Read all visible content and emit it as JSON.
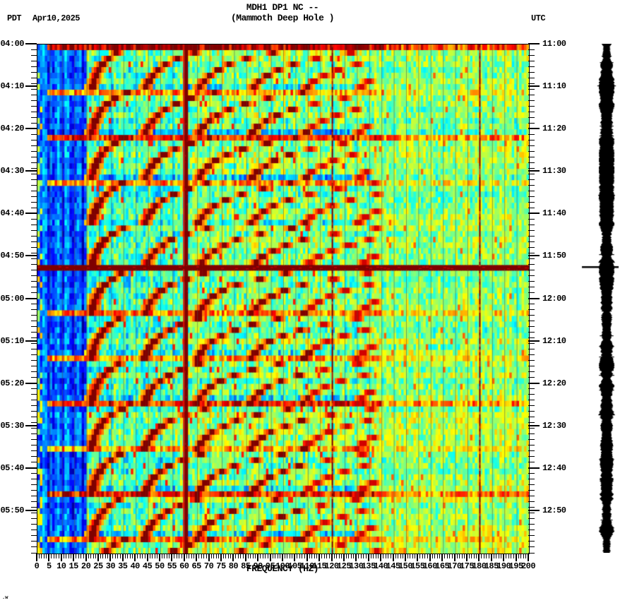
{
  "header": {
    "tz_left": "PDT",
    "date": "Apr10,2025",
    "title": "MDH1 DP1 NC --",
    "subtitle": "(Mammoth Deep Hole )",
    "tz_right": "UTC"
  },
  "footer_note": ".w",
  "chart_data": {
    "type": "heatmap",
    "subtype": "seismic-spectrogram",
    "title": "MDH1 DP1 NC --",
    "subtitle": "(Mammoth Deep Hole )",
    "xlabel": "FREQUENCY (HZ)",
    "x_range_hz": [
      0,
      200
    ],
    "x_major_tick_step_hz": 5,
    "x_minor_tick_step_hz": 1,
    "x_tick_labels": [
      "0",
      "5",
      "10",
      "15",
      "20",
      "25",
      "30",
      "35",
      "40",
      "45",
      "50",
      "55",
      "60",
      "65",
      "70",
      "75",
      "80",
      "85",
      "90",
      "95",
      "100",
      "105",
      "110",
      "115",
      "120",
      "125",
      "130",
      "135",
      "140",
      "145",
      "150",
      "155",
      "160",
      "165",
      "170",
      "175",
      "180",
      "185",
      "190",
      "195",
      "200"
    ],
    "left_axis": {
      "timezone": "PDT",
      "start": "04:00",
      "end": "06:00",
      "label_step_min": 10,
      "labels": [
        "04:00",
        "04:10",
        "04:20",
        "04:30",
        "04:40",
        "04:50",
        "05:00",
        "05:10",
        "05:20",
        "05:30",
        "05:40",
        "05:50"
      ]
    },
    "right_axis": {
      "timezone": "UTC",
      "start": "11:00",
      "end": "13:00",
      "label_step_min": 10,
      "labels": [
        "11:00",
        "11:10",
        "11:20",
        "11:30",
        "11:40",
        "11:50",
        "12:00",
        "12:10",
        "12:20",
        "12:30",
        "12:40",
        "12:50"
      ]
    },
    "time_rows": 90,
    "row_duration_sec": 80,
    "palette": "jet",
    "features": {
      "powerline_hz": [
        60,
        120,
        180
      ],
      "powerline_main_color": "#7f0000",
      "powerline_bright_color": "#e01000",
      "gridline_step_hz": 5,
      "red_event_line_min": 52.6,
      "glide": {
        "f_asymptote_hz": 20.5,
        "f_drop_hz": 16,
        "tau_min": 3.8,
        "harmonics": 7,
        "max_visible_hz": 138,
        "period_min": 10.5
      },
      "glide_events": [
        {
          "start_min": 0,
          "burst": 0.95
        },
        {
          "start_min": 10.5,
          "burst": 0.72
        },
        {
          "start_min": 21,
          "burst": 0.85
        },
        {
          "start_min": 31.5,
          "burst": 0.72
        },
        {
          "start_min": 42,
          "burst": 0.72
        },
        {
          "start_min": 52.6,
          "burst": 1.0
        },
        {
          "start_min": 63,
          "burst": 0.75
        },
        {
          "start_min": 73.5,
          "burst": 0.72
        },
        {
          "start_min": 84.5,
          "burst": 0.85
        },
        {
          "start_min": 95,
          "burst": 0.72
        },
        {
          "start_min": 105.5,
          "burst": 0.85
        },
        {
          "start_min": 115.5,
          "burst": 0.75
        }
      ]
    },
    "side_trace": {
      "type": "seismogram-strip",
      "color": "#000000",
      "marker_minute": 52.6
    }
  }
}
